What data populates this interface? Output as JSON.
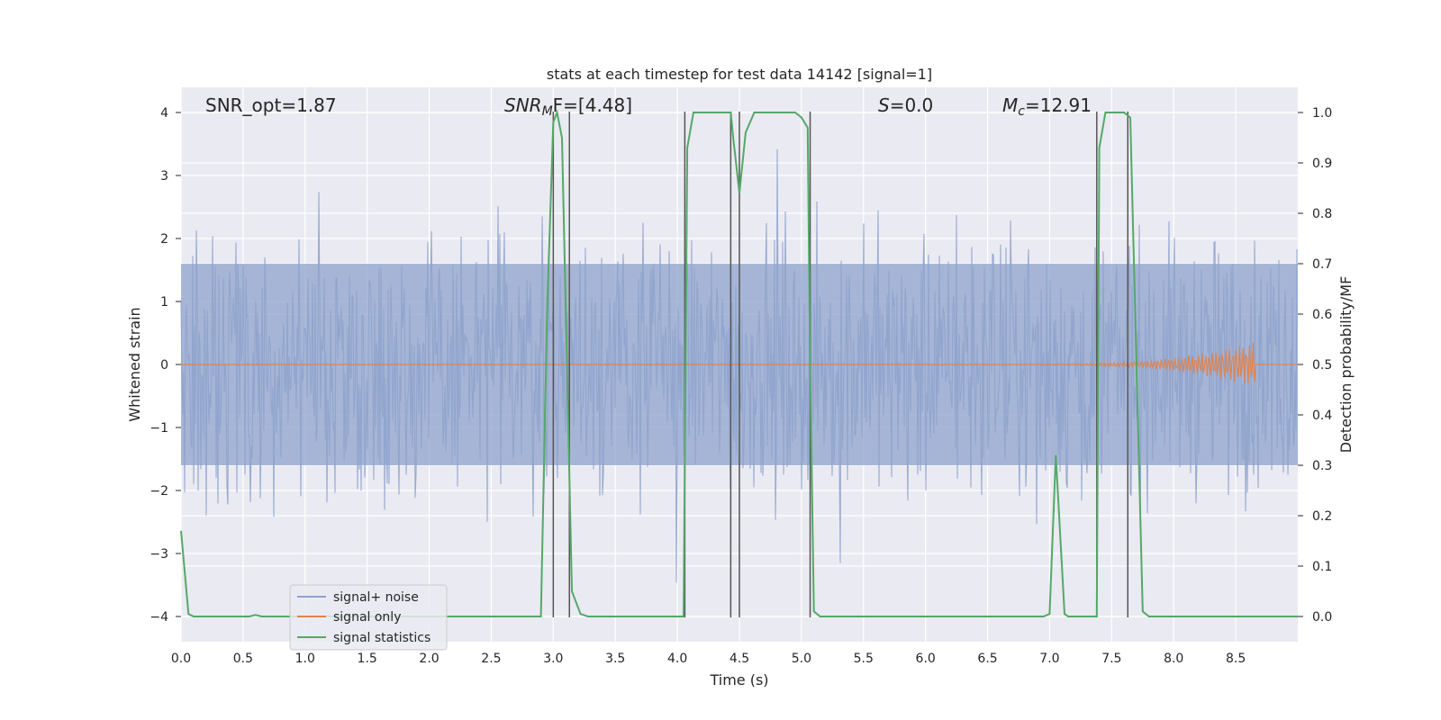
{
  "chart_data": {
    "type": "line",
    "title": "stats at each timestep for test data 14142 [signal=1]",
    "xlabel": "Time (s)",
    "ylabel_left": "Whitened strain",
    "ylabel_right": "Detection probability/MF",
    "xlim": [
      0,
      9.0
    ],
    "ylim_left": [
      -4.4,
      4.4
    ],
    "ylim_right": [
      -0.05,
      1.05
    ],
    "x_ticks": [
      "0.0",
      "0.5",
      "1.0",
      "1.5",
      "2.0",
      "2.5",
      "3.0",
      "3.5",
      "4.0",
      "4.5",
      "5.0",
      "5.5",
      "6.0",
      "6.5",
      "7.0",
      "7.5",
      "8.0",
      "8.5"
    ],
    "y_left_ticks": [
      "−4",
      "−3",
      "−2",
      "−1",
      "0",
      "1",
      "2",
      "3",
      "4"
    ],
    "y_right_ticks": [
      "0.0",
      "0.1",
      "0.2",
      "0.3",
      "0.4",
      "0.5",
      "0.6",
      "0.7",
      "0.8",
      "0.9",
      "1.0"
    ],
    "grid": true,
    "legend_position": "lower-left",
    "annotations": {
      "snr_opt": "SNR_opt=1.87",
      "snr_mf_base": "SNR",
      "snr_mf_sub": "M",
      "snr_mf_rest": "F=[4.48]",
      "s_italic": "S",
      "s_rest": "=0.0",
      "mc_italic": "M",
      "mc_sub": "c",
      "mc_rest": "=12.91"
    },
    "series": [
      {
        "name": "signal+ noise",
        "color": "#8fa3cc",
        "note_amplitude": "random noise approx ±2.5, peaks to ±3.7"
      },
      {
        "name": "signal only",
        "color": "#dd8452",
        "chirp_start": 6.8,
        "chirp_end": 8.65,
        "peak_amplitude": 0.35
      },
      {
        "name": "signal statistics",
        "color": "#55a868",
        "x": [
          0.0,
          0.06,
          0.1,
          0.55,
          0.6,
          0.65,
          0.7,
          2.9,
          2.95,
          3.0,
          3.03,
          3.07,
          3.15,
          3.22,
          3.28,
          3.5,
          4.05,
          4.08,
          4.13,
          4.2,
          4.3,
          4.43,
          4.45,
          4.5,
          4.55,
          4.62,
          4.7,
          4.95,
          5.0,
          5.05,
          5.07,
          5.1,
          5.15,
          5.3,
          6.95,
          7.0,
          7.05,
          7.12,
          7.15,
          7.38,
          7.4,
          7.45,
          7.5,
          7.6,
          7.65,
          7.75,
          7.8,
          9.0
        ],
        "y": [
          0.17,
          0.005,
          0.0,
          0.0,
          0.003,
          0.0,
          0.0,
          0.0,
          0.6,
          0.98,
          1.0,
          0.95,
          0.05,
          0.005,
          0.0,
          0.0,
          0.0,
          0.93,
          1.0,
          1.0,
          1.0,
          1.0,
          0.95,
          0.84,
          0.96,
          1.0,
          1.0,
          1.0,
          0.99,
          0.97,
          0.5,
          0.01,
          0.0,
          0.0,
          0.0,
          0.005,
          0.32,
          0.005,
          0.0,
          0.0,
          0.93,
          1.0,
          1.0,
          1.0,
          0.99,
          0.01,
          0.0,
          0.0
        ]
      }
    ],
    "vlines": [
      3.0,
      3.13,
      4.06,
      4.43,
      4.5,
      5.07,
      7.38,
      7.63
    ],
    "legend": {
      "items": [
        "signal+ noise",
        "signal only",
        "signal statistics"
      ]
    }
  }
}
